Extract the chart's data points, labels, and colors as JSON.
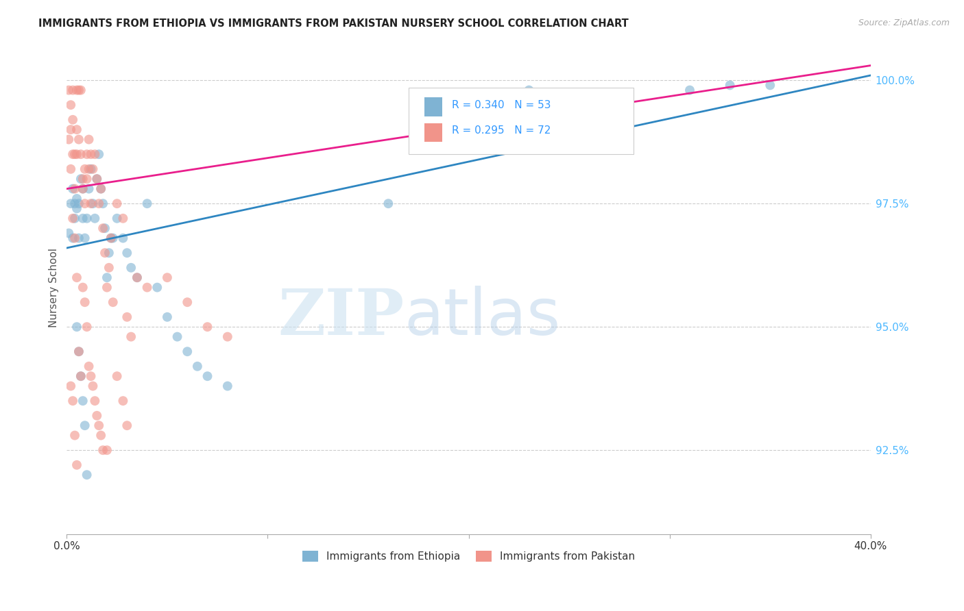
{
  "title": "IMMIGRANTS FROM ETHIOPIA VS IMMIGRANTS FROM PAKISTAN NURSERY SCHOOL CORRELATION CHART",
  "source": "Source: ZipAtlas.com",
  "ylabel": "Nursery School",
  "yticks": [
    "100.0%",
    "97.5%",
    "95.0%",
    "92.5%"
  ],
  "ytick_values": [
    1.0,
    0.975,
    0.95,
    0.925
  ],
  "xlim": [
    0.0,
    0.4
  ],
  "ylim": [
    0.908,
    1.008
  ],
  "color_ethiopia": "#7fb3d3",
  "color_pakistan": "#f1948a",
  "line_color_ethiopia": "#2e86c1",
  "line_color_pakistan": "#e91e8c",
  "watermark_zip": "ZIP",
  "watermark_atlas": "atlas",
  "ethiopia_x": [
    0.001,
    0.002,
    0.003,
    0.003,
    0.004,
    0.004,
    0.005,
    0.005,
    0.006,
    0.006,
    0.007,
    0.008,
    0.008,
    0.009,
    0.01,
    0.011,
    0.012,
    0.013,
    0.014,
    0.015,
    0.016,
    0.017,
    0.018,
    0.019,
    0.02,
    0.021,
    0.022,
    0.023,
    0.025,
    0.028,
    0.03,
    0.032,
    0.035,
    0.04,
    0.045,
    0.05,
    0.055,
    0.06,
    0.065,
    0.07,
    0.08,
    0.16,
    0.23,
    0.27,
    0.31,
    0.33,
    0.35,
    0.005,
    0.006,
    0.007,
    0.008,
    0.009,
    0.01
  ],
  "ethiopia_y": [
    0.969,
    0.975,
    0.978,
    0.968,
    0.975,
    0.972,
    0.976,
    0.974,
    0.968,
    0.975,
    0.98,
    0.978,
    0.972,
    0.968,
    0.972,
    0.978,
    0.982,
    0.975,
    0.972,
    0.98,
    0.985,
    0.978,
    0.975,
    0.97,
    0.96,
    0.965,
    0.968,
    0.968,
    0.972,
    0.968,
    0.965,
    0.962,
    0.96,
    0.975,
    0.958,
    0.952,
    0.948,
    0.945,
    0.942,
    0.94,
    0.938,
    0.975,
    0.998,
    0.997,
    0.998,
    0.999,
    0.999,
    0.95,
    0.945,
    0.94,
    0.935,
    0.93,
    0.92
  ],
  "pakistan_x": [
    0.001,
    0.001,
    0.002,
    0.002,
    0.002,
    0.003,
    0.003,
    0.003,
    0.004,
    0.004,
    0.005,
    0.005,
    0.005,
    0.006,
    0.006,
    0.007,
    0.007,
    0.008,
    0.008,
    0.009,
    0.009,
    0.01,
    0.01,
    0.011,
    0.011,
    0.012,
    0.012,
    0.013,
    0.014,
    0.015,
    0.016,
    0.017,
    0.018,
    0.019,
    0.02,
    0.021,
    0.022,
    0.023,
    0.025,
    0.028,
    0.03,
    0.032,
    0.035,
    0.04,
    0.05,
    0.06,
    0.07,
    0.08,
    0.003,
    0.004,
    0.005,
    0.006,
    0.007,
    0.008,
    0.009,
    0.01,
    0.011,
    0.012,
    0.013,
    0.014,
    0.015,
    0.016,
    0.017,
    0.018,
    0.02,
    0.025,
    0.028,
    0.03,
    0.002,
    0.003,
    0.004,
    0.005
  ],
  "pakistan_y": [
    0.998,
    0.988,
    0.99,
    0.982,
    0.995,
    0.992,
    0.985,
    0.998,
    0.985,
    0.978,
    0.99,
    0.985,
    0.998,
    0.998,
    0.988,
    0.985,
    0.998,
    0.98,
    0.978,
    0.982,
    0.975,
    0.985,
    0.98,
    0.982,
    0.988,
    0.975,
    0.985,
    0.982,
    0.985,
    0.98,
    0.975,
    0.978,
    0.97,
    0.965,
    0.958,
    0.962,
    0.968,
    0.955,
    0.975,
    0.972,
    0.952,
    0.948,
    0.96,
    0.958,
    0.96,
    0.955,
    0.95,
    0.948,
    0.972,
    0.968,
    0.96,
    0.945,
    0.94,
    0.958,
    0.955,
    0.95,
    0.942,
    0.94,
    0.938,
    0.935,
    0.932,
    0.93,
    0.928,
    0.925,
    0.925,
    0.94,
    0.935,
    0.93,
    0.938,
    0.935,
    0.928,
    0.922
  ],
  "line_eth_x0": 0.0,
  "line_eth_y0": 0.966,
  "line_eth_x1": 0.4,
  "line_eth_y1": 1.001,
  "line_pak_x0": 0.0,
  "line_pak_y0": 0.978,
  "line_pak_x1": 0.4,
  "line_pak_y1": 1.003
}
